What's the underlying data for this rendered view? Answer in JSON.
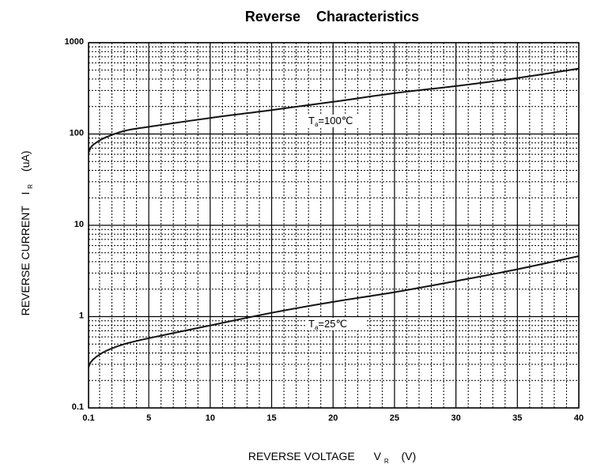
{
  "chart_data": {
    "type": "line",
    "title": "Reverse    Characteristics",
    "xlabel": {
      "main": "REVERSE VOLTAGE",
      "symbol": "V",
      "subscript": "R",
      "unit": "(V)"
    },
    "ylabel": {
      "main": "REVERSE CURRENT",
      "symbol": "I",
      "subscript": "R",
      "unit": "(uA)"
    },
    "xlim": [
      0.1,
      40
    ],
    "ylim": [
      0.1,
      1000
    ],
    "yscale": "log",
    "grid": true,
    "x_ticks": [
      "0.1",
      "5",
      "10",
      "15",
      "20",
      "25",
      "30",
      "35",
      "40"
    ],
    "x_tick_values": [
      0.1,
      5,
      10,
      15,
      20,
      25,
      30,
      35,
      40
    ],
    "y_ticks": [
      "0.1",
      "1",
      "10",
      "100",
      "1000"
    ],
    "y_tick_values": [
      0.1,
      1,
      10,
      100,
      1000
    ],
    "series": [
      {
        "annotation": {
          "symbol": "T",
          "subscript": "a",
          "text": "=100℃"
        },
        "x": [
          0.1,
          0.3,
          0.7,
          1.5,
          3,
          5,
          10,
          15,
          20,
          25,
          30,
          35,
          40
        ],
        "y": [
          62,
          72,
          80,
          92,
          108,
          120,
          150,
          183,
          225,
          280,
          335,
          410,
          520
        ]
      },
      {
        "annotation": {
          "symbol": "T",
          "subscript": "a",
          "text": "=25℃"
        },
        "x": [
          0.1,
          0.3,
          0.7,
          1.5,
          3,
          5,
          10,
          15,
          20,
          25,
          30,
          35,
          40
        ],
        "y": [
          0.28,
          0.32,
          0.36,
          0.42,
          0.5,
          0.58,
          0.8,
          1.1,
          1.45,
          1.85,
          2.45,
          3.3,
          4.6
        ]
      }
    ]
  }
}
